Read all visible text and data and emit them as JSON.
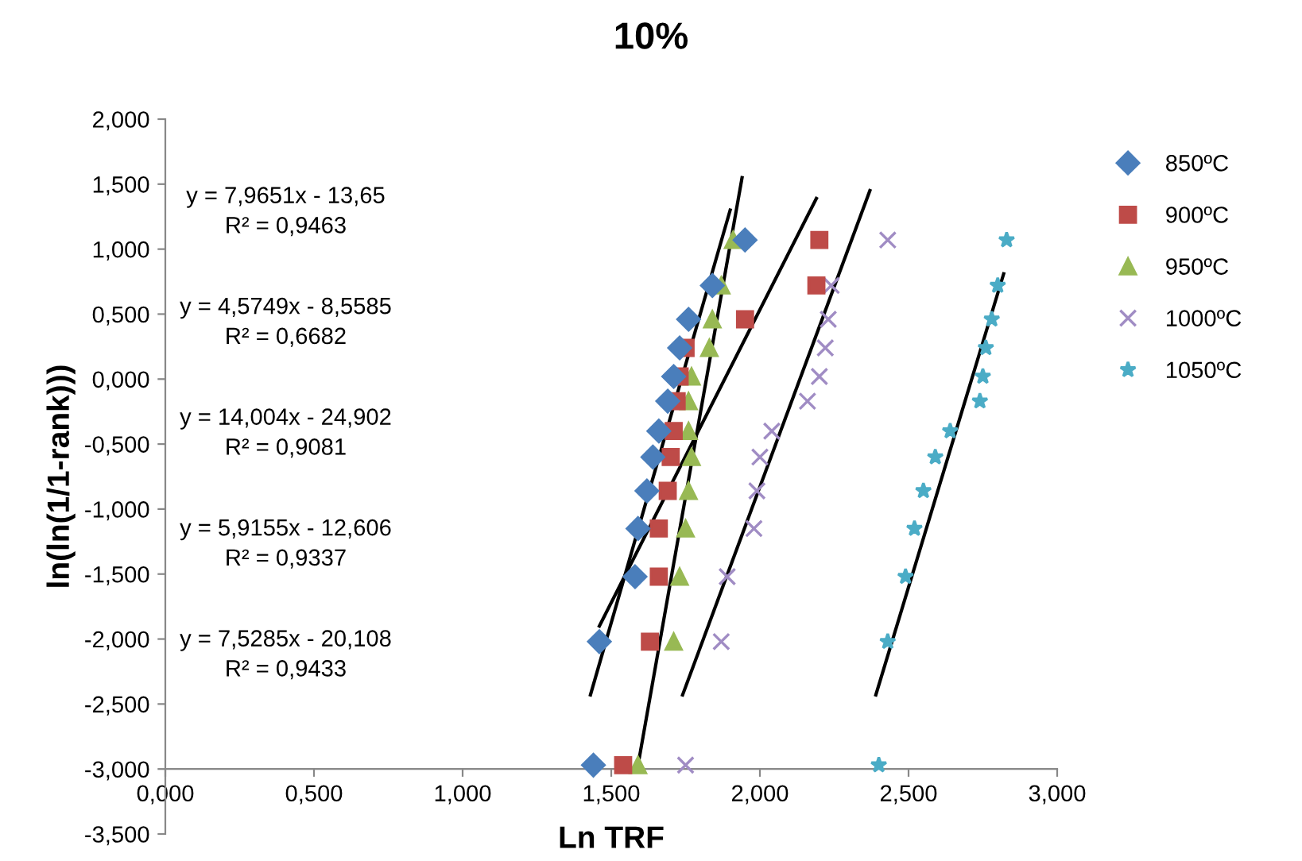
{
  "chart_data": {
    "type": "scatter",
    "title": "10%",
    "xlabel": "Ln TRF",
    "ylabel": "ln(ln(1/1-rank)))",
    "xlim": [
      0,
      3
    ],
    "ylim": [
      -3.5,
      2
    ],
    "xticks": [
      {
        "value": 0,
        "label": "0,000"
      },
      {
        "value": 0.5,
        "label": "0,500"
      },
      {
        "value": 1,
        "label": "1,000"
      },
      {
        "value": 1.5,
        "label": "1,500"
      },
      {
        "value": 2,
        "label": "2,000"
      },
      {
        "value": 2.5,
        "label": "2,500"
      },
      {
        "value": 3,
        "label": "3,000"
      }
    ],
    "yticks": [
      {
        "value": -3.5,
        "label": "-3,500"
      },
      {
        "value": -3,
        "label": "-3,000"
      },
      {
        "value": -2.5,
        "label": "-2,500"
      },
      {
        "value": -2,
        "label": "-2,000"
      },
      {
        "value": -1.5,
        "label": "-1,500"
      },
      {
        "value": -1,
        "label": "-1,000"
      },
      {
        "value": -0.5,
        "label": "-0,500"
      },
      {
        "value": 0,
        "label": "0,000"
      },
      {
        "value": 0.5,
        "label": "0,500"
      },
      {
        "value": 1,
        "label": "1,000"
      },
      {
        "value": 1.5,
        "label": "1,500"
      },
      {
        "value": 2,
        "label": "2,000"
      }
    ],
    "grid": false,
    "legend": "right",
    "series": [
      {
        "name": "850ºC",
        "color": "#4a7ebb",
        "marker": "diamond",
        "x": [
          1.95,
          1.84,
          1.76,
          1.73,
          1.71,
          1.69,
          1.66,
          1.64,
          1.62,
          1.59,
          1.58,
          1.46,
          1.44
        ],
        "values": [
          1.07,
          0.72,
          0.46,
          0.24,
          0.02,
          -0.17,
          -0.4,
          -0.6,
          -0.86,
          -1.15,
          -1.52,
          -2.02,
          -2.97
        ]
      },
      {
        "name": "900ºC",
        "color": "#be4b48",
        "marker": "square",
        "x": [
          2.2,
          2.19,
          1.95,
          1.75,
          1.73,
          1.72,
          1.71,
          1.7,
          1.69,
          1.66,
          1.66,
          1.63,
          1.54
        ],
        "values": [
          1.07,
          0.72,
          0.46,
          0.24,
          0.02,
          -0.17,
          -0.4,
          -0.6,
          -0.86,
          -1.15,
          -1.52,
          -2.02,
          -2.97
        ]
      },
      {
        "name": "950ºC",
        "color": "#98b954",
        "marker": "triangle",
        "x": [
          1.91,
          1.87,
          1.84,
          1.83,
          1.77,
          1.76,
          1.76,
          1.77,
          1.76,
          1.75,
          1.73,
          1.71,
          1.59
        ],
        "values": [
          1.07,
          0.72,
          0.46,
          0.24,
          0.02,
          -0.17,
          -0.4,
          -0.6,
          -0.86,
          -1.15,
          -1.52,
          -2.02,
          -2.97
        ]
      },
      {
        "name": "1000ºC",
        "color": "#a08cc4",
        "marker": "cross",
        "x": [
          2.43,
          2.24,
          2.23,
          2.22,
          2.2,
          2.16,
          2.04,
          2.0,
          1.99,
          1.98,
          1.89,
          1.87,
          1.75
        ],
        "values": [
          1.07,
          0.72,
          0.46,
          0.24,
          0.02,
          -0.17,
          -0.4,
          -0.6,
          -0.86,
          -1.15,
          -1.52,
          -2.02,
          -2.97
        ]
      },
      {
        "name": "1050ºC",
        "color": "#4bacc6",
        "marker": "star",
        "x": [
          2.83,
          2.8,
          2.78,
          2.76,
          2.75,
          2.74,
          2.64,
          2.59,
          2.55,
          2.52,
          2.49,
          2.43,
          2.4
        ],
        "values": [
          1.07,
          0.72,
          0.46,
          0.24,
          0.02,
          -0.17,
          -0.4,
          -0.6,
          -0.86,
          -1.15,
          -1.52,
          -2.02,
          -2.97
        ]
      },
      {
        "type": "line",
        "color": "#000000",
        "marker": "none",
        "x": [
          1.43,
          1.9
        ],
        "values": [
          -2.43,
          1.3
        ]
      },
      {
        "type": "line",
        "color": "#000000",
        "marker": "none",
        "x": [
          1.46,
          2.19
        ],
        "values": [
          -1.9,
          1.39
        ]
      },
      {
        "type": "line",
        "color": "#000000",
        "marker": "none",
        "x": [
          1.59,
          1.94
        ],
        "values": [
          -2.97,
          1.55
        ]
      },
      {
        "type": "line",
        "color": "#000000",
        "marker": "none",
        "x": [
          1.74,
          2.37
        ],
        "values": [
          -2.43,
          1.45
        ]
      },
      {
        "type": "line",
        "color": "#000000",
        "marker": "none",
        "x": [
          2.39,
          2.82
        ],
        "values": [
          -2.43,
          0.81
        ]
      }
    ],
    "annotations": [
      "y = 7,9651x - 13,65\nR² = 0,9463",
      "y = 4,5749x - 8,5585\nR² = 0,6682",
      "y = 14,004x - 24,902\nR² = 0,9081",
      "y = 5,9155x - 12,606\nR² = 0,9337",
      "y = 7,5285x - 20,108\nR² = 0,9433"
    ]
  }
}
